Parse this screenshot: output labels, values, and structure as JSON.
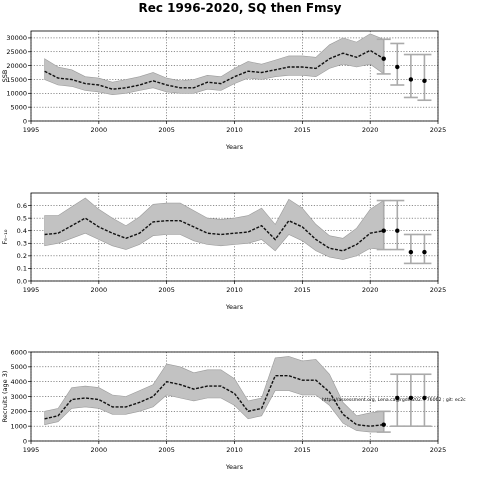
{
  "title": "Rec 1996-2020, SQ then Fmsy",
  "annotation": "https://assessment.org, Lena.ca@rgdm202... 76062 ; git: ec2c",
  "chart_data": [
    {
      "type": "line",
      "ylabel": "SSB",
      "xlabel": "Years",
      "xlim": [
        1995,
        2025
      ],
      "ylim": [
        0,
        32500
      ],
      "xticks": [
        1995,
        2000,
        2005,
        2010,
        2015,
        2020,
        2025
      ],
      "yticks": [
        0,
        5000,
        10000,
        15000,
        20000,
        25000,
        30000
      ],
      "grid": true,
      "x": [
        1996,
        1997,
        1998,
        1999,
        2000,
        2001,
        2002,
        2003,
        2004,
        2005,
        2006,
        2007,
        2008,
        2009,
        2010,
        2011,
        2012,
        2013,
        2014,
        2015,
        2016,
        2017,
        2018,
        2019,
        2020,
        2021
      ],
      "series": [
        {
          "values": [
            18000,
            15500,
            15000,
            13500,
            13000,
            11500,
            12000,
            13000,
            14500,
            13000,
            12000,
            12000,
            14000,
            13500,
            16000,
            18000,
            17500,
            18500,
            19500,
            19500,
            19000,
            22500,
            24500,
            23000,
            25500,
            22500
          ],
          "upper": [
            22500,
            19500,
            18500,
            16000,
            15500,
            14000,
            15000,
            16000,
            17500,
            15500,
            14500,
            15000,
            16500,
            16000,
            19000,
            21500,
            20500,
            22000,
            23500,
            23500,
            23000,
            27500,
            30000,
            28500,
            31500,
            29500
          ],
          "lower": [
            15000,
            13000,
            12500,
            11000,
            10500,
            9500,
            10000,
            11000,
            12000,
            10500,
            10000,
            10000,
            11500,
            11000,
            13500,
            15500,
            15000,
            16000,
            16500,
            16500,
            16000,
            19000,
            20500,
            19500,
            20500,
            17000
          ]
        }
      ],
      "forecast": [
        {
          "year": 2022,
          "median": 19500,
          "upper": 28000,
          "lower": 13000
        },
        {
          "year": 2023,
          "median": 15000,
          "upper": 24000,
          "lower": 8500
        },
        {
          "year": 2024,
          "median": 14500,
          "upper": 24000,
          "lower": 7500
        }
      ]
    },
    {
      "type": "line",
      "ylabel": "F₆₋₁₀",
      "xlabel": "Years",
      "xlim": [
        1995,
        2025
      ],
      "ylim": [
        0,
        0.7
      ],
      "xticks": [
        1995,
        2000,
        2005,
        2010,
        2015,
        2020,
        2025
      ],
      "yticks": [
        0.0,
        0.1,
        0.2,
        0.3,
        0.4,
        0.5,
        0.6
      ],
      "grid": true,
      "x": [
        1996,
        1997,
        1998,
        1999,
        2000,
        2001,
        2002,
        2003,
        2004,
        2005,
        2006,
        2007,
        2008,
        2009,
        2010,
        2011,
        2012,
        2013,
        2014,
        2015,
        2016,
        2017,
        2018,
        2019,
        2020,
        2021
      ],
      "series": [
        {
          "values": [
            0.37,
            0.38,
            0.44,
            0.5,
            0.43,
            0.38,
            0.34,
            0.38,
            0.47,
            0.48,
            0.48,
            0.43,
            0.38,
            0.37,
            0.38,
            0.39,
            0.44,
            0.33,
            0.48,
            0.43,
            0.33,
            0.26,
            0.24,
            0.29,
            0.38,
            0.4
          ],
          "upper": [
            0.52,
            0.52,
            0.59,
            0.66,
            0.57,
            0.5,
            0.44,
            0.51,
            0.61,
            0.62,
            0.62,
            0.56,
            0.5,
            0.49,
            0.5,
            0.52,
            0.58,
            0.45,
            0.65,
            0.58,
            0.45,
            0.36,
            0.34,
            0.42,
            0.57,
            0.64
          ],
          "lower": [
            0.28,
            0.3,
            0.34,
            0.38,
            0.33,
            0.28,
            0.25,
            0.29,
            0.36,
            0.37,
            0.37,
            0.32,
            0.29,
            0.28,
            0.29,
            0.3,
            0.33,
            0.24,
            0.37,
            0.32,
            0.24,
            0.19,
            0.17,
            0.2,
            0.26,
            0.25
          ]
        }
      ],
      "forecast": [
        {
          "year": 2022,
          "median": 0.4,
          "upper": 0.64,
          "lower": 0.25
        },
        {
          "year": 2023,
          "median": 0.23,
          "upper": 0.37,
          "lower": 0.14
        },
        {
          "year": 2024,
          "median": 0.23,
          "upper": 0.37,
          "lower": 0.14
        }
      ]
    },
    {
      "type": "line",
      "ylabel": "Recruits (age 3)",
      "xlabel": "Years",
      "xlim": [
        1995,
        2025
      ],
      "ylim": [
        0,
        6000
      ],
      "xticks": [
        1995,
        2000,
        2005,
        2010,
        2015,
        2020,
        2025
      ],
      "yticks": [
        0,
        1000,
        2000,
        3000,
        4000,
        5000,
        6000
      ],
      "grid": true,
      "x": [
        1996,
        1997,
        1998,
        1999,
        2000,
        2001,
        2002,
        2003,
        2004,
        2005,
        2006,
        2007,
        2008,
        2009,
        2010,
        2011,
        2012,
        2013,
        2014,
        2015,
        2016,
        2017,
        2018,
        2019,
        2020,
        2021
      ],
      "series": [
        {
          "values": [
            1500,
            1700,
            2800,
            2900,
            2800,
            2300,
            2300,
            2600,
            3000,
            4000,
            3800,
            3500,
            3700,
            3700,
            3200,
            2000,
            2200,
            4400,
            4400,
            4100,
            4100,
            3300,
            1800,
            1100,
            1000,
            1100
          ],
          "upper": [
            2000,
            2200,
            3600,
            3700,
            3600,
            3100,
            3000,
            3400,
            3800,
            5200,
            5000,
            4600,
            4800,
            4800,
            4200,
            2700,
            2900,
            5600,
            5700,
            5400,
            5500,
            4500,
            2600,
            1700,
            1900,
            2000
          ],
          "lower": [
            1100,
            1300,
            2200,
            2300,
            2200,
            1800,
            1800,
            2000,
            2300,
            3100,
            2900,
            2700,
            2900,
            2900,
            2400,
            1500,
            1700,
            3400,
            3400,
            3100,
            3100,
            2400,
            1200,
            700,
            600,
            600
          ]
        }
      ],
      "forecast": [
        {
          "year": 2022,
          "median": 2900,
          "upper": 4500,
          "lower": 1000
        },
        {
          "year": 2023,
          "median": 2900,
          "upper": 4500,
          "lower": 1000
        },
        {
          "year": 2024,
          "median": 2900,
          "upper": 4500,
          "lower": 1000
        }
      ]
    }
  ]
}
